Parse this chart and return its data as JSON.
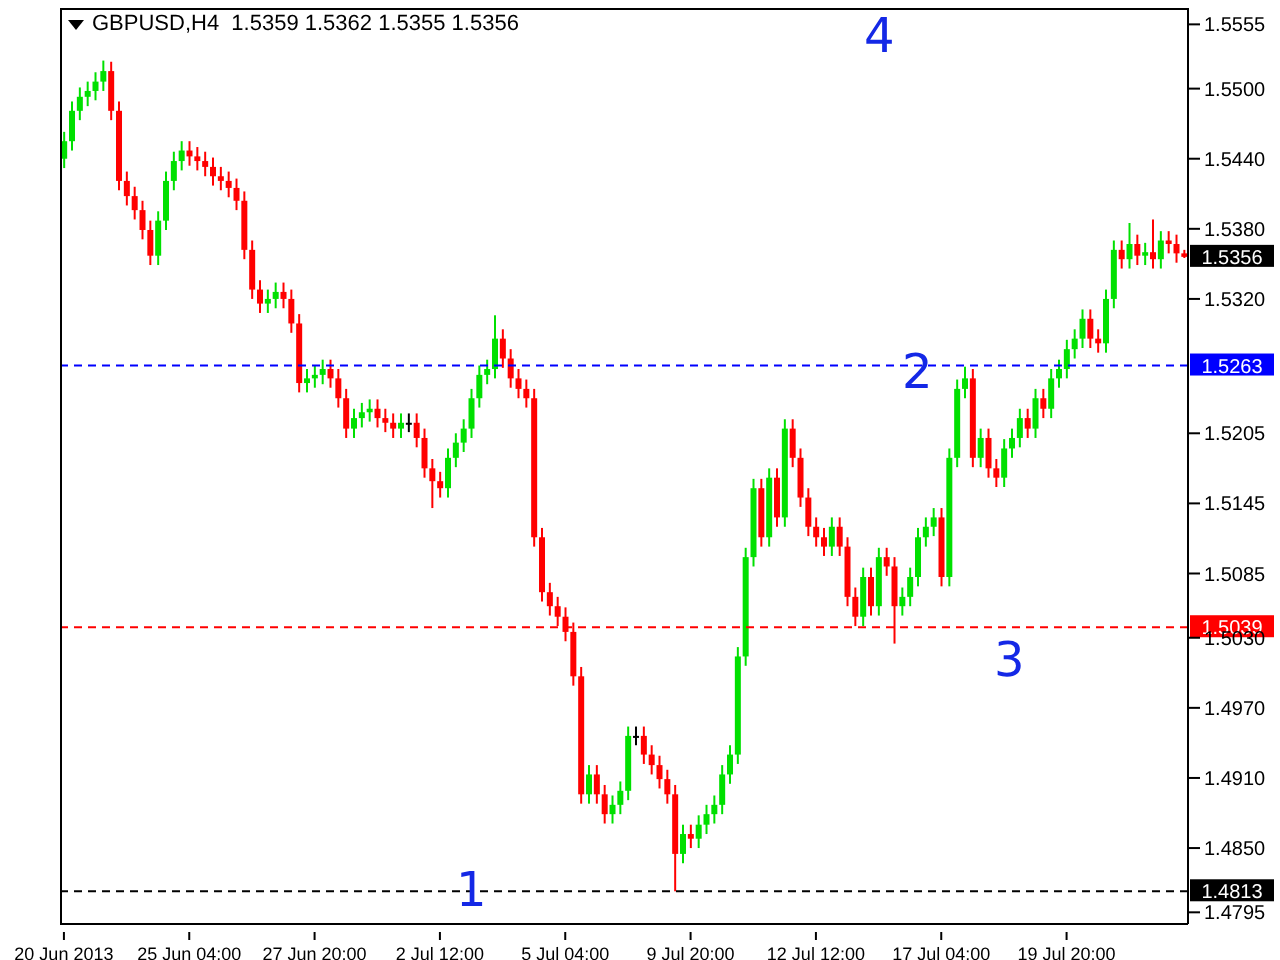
{
  "chart_data": {
    "type": "candlestick",
    "title": "GBPUSD,H4  1.5359 1.5362 1.5355 1.5356",
    "categories": [
      "20 Jun 2013",
      null,
      null,
      null,
      null,
      null,
      null,
      null,
      null,
      null,
      null,
      null,
      null,
      null,
      null,
      null,
      "25 Jun 04:00",
      null,
      null,
      null,
      null,
      null,
      null,
      null,
      null,
      null,
      null,
      null,
      null,
      null,
      null,
      null,
      "27 Jun 20:00",
      null,
      null,
      null,
      null,
      null,
      null,
      null,
      null,
      null,
      null,
      null,
      null,
      null,
      null,
      null,
      "2 Jul 12:00",
      null,
      null,
      null,
      null,
      null,
      null,
      null,
      null,
      null,
      null,
      null,
      null,
      null,
      null,
      null,
      "5 Jul 04:00",
      null,
      null,
      null,
      null,
      null,
      null,
      null,
      null,
      null,
      null,
      null,
      null,
      null,
      null,
      null,
      "9 Jul 20:00",
      null,
      null,
      null,
      null,
      null,
      null,
      null,
      null,
      null,
      null,
      null,
      null,
      null,
      null,
      null,
      "12 Jul 12:00",
      null,
      null,
      null,
      null,
      null,
      null,
      null,
      null,
      null,
      null,
      null,
      null,
      null,
      null,
      null,
      "17 Jul 04:00",
      null,
      null,
      null,
      null,
      null,
      null,
      null,
      null,
      null,
      null,
      null,
      null,
      null,
      null,
      null,
      "19 Jul 20:00",
      null,
      null,
      null,
      null,
      null,
      null,
      null,
      null,
      null,
      null,
      null,
      null,
      null,
      null,
      null
    ],
    "ohlc": [
      [
        1.544,
        1.5463,
        1.5432,
        1.5455
      ],
      [
        1.5455,
        1.5489,
        1.5447,
        1.5481
      ],
      [
        1.5481,
        1.5501,
        1.5473,
        1.5493
      ],
      [
        1.5493,
        1.5506,
        1.5485,
        1.5498
      ],
      [
        1.5498,
        1.5514,
        1.549,
        1.5506
      ],
      [
        1.5506,
        1.5524,
        1.5498,
        1.5515
      ],
      [
        1.5515,
        1.5523,
        1.5473,
        1.5481
      ],
      [
        1.5481,
        1.5489,
        1.5413,
        1.5421
      ],
      [
        1.5421,
        1.5429,
        1.54,
        1.5408
      ],
      [
        1.5408,
        1.5416,
        1.5388,
        1.5396
      ],
      [
        1.5396,
        1.5404,
        1.5371,
        1.5379
      ],
      [
        1.5379,
        1.5387,
        1.5349,
        1.5357
      ],
      [
        1.5357,
        1.5395,
        1.5349,
        1.5387
      ],
      [
        1.5387,
        1.5429,
        1.5379,
        1.5421
      ],
      [
        1.5421,
        1.5446,
        1.5413,
        1.5438
      ],
      [
        1.5438,
        1.5455,
        1.543,
        1.5447
      ],
      [
        1.5447,
        1.5455,
        1.5434,
        1.5442
      ],
      [
        1.5442,
        1.545,
        1.543,
        1.5438
      ],
      [
        1.5438,
        1.5446,
        1.5425,
        1.5433
      ],
      [
        1.5433,
        1.5441,
        1.5417,
        1.5425
      ],
      [
        1.5425,
        1.5433,
        1.5413,
        1.5421
      ],
      [
        1.5421,
        1.5429,
        1.5407,
        1.5415
      ],
      [
        1.5415,
        1.5423,
        1.5396,
        1.5404
      ],
      [
        1.5404,
        1.5412,
        1.5354,
        1.5362
      ],
      [
        1.5362,
        1.537,
        1.532,
        1.5328
      ],
      [
        1.5328,
        1.5336,
        1.5308,
        1.5316
      ],
      [
        1.5316,
        1.5328,
        1.5308,
        1.532
      ],
      [
        1.532,
        1.5334,
        1.5312,
        1.5326
      ],
      [
        1.5326,
        1.5334,
        1.5312,
        1.532
      ],
      [
        1.532,
        1.5328,
        1.5291,
        1.5299
      ],
      [
        1.5299,
        1.5307,
        1.524,
        1.5248
      ],
      [
        1.5248,
        1.526,
        1.524,
        1.5252
      ],
      [
        1.5252,
        1.5263,
        1.5244,
        1.5255
      ],
      [
        1.5255,
        1.5268,
        1.5247,
        1.526
      ],
      [
        1.526,
        1.5268,
        1.5244,
        1.5252
      ],
      [
        1.5252,
        1.526,
        1.5227,
        1.5235
      ],
      [
        1.5235,
        1.5243,
        1.5201,
        1.5209
      ],
      [
        1.5209,
        1.5226,
        1.5201,
        1.5218
      ],
      [
        1.5218,
        1.5231,
        1.521,
        1.5223
      ],
      [
        1.5223,
        1.5234,
        1.5215,
        1.5226
      ],
      [
        1.5226,
        1.5234,
        1.521,
        1.5218
      ],
      [
        1.5218,
        1.5226,
        1.5206,
        1.5214
      ],
      [
        1.5214,
        1.5222,
        1.5201,
        1.5209
      ],
      [
        1.5209,
        1.5222,
        1.5201,
        1.5214
      ],
      [
        1.5214,
        1.5222,
        1.5206,
        1.5214
      ],
      [
        1.5214,
        1.5222,
        1.5193,
        1.5201
      ],
      [
        1.5201,
        1.5209,
        1.5167,
        1.5175
      ],
      [
        1.5175,
        1.5183,
        1.5141,
        1.5164
      ],
      [
        1.5164,
        1.5172,
        1.515,
        1.5158
      ],
      [
        1.5158,
        1.5192,
        1.515,
        1.5184
      ],
      [
        1.5184,
        1.5205,
        1.5176,
        1.5197
      ],
      [
        1.5197,
        1.5217,
        1.5189,
        1.5209
      ],
      [
        1.5209,
        1.5243,
        1.5201,
        1.5235
      ],
      [
        1.5235,
        1.5263,
        1.5227,
        1.5255
      ],
      [
        1.5255,
        1.5268,
        1.5247,
        1.526
      ],
      [
        1.526,
        1.5306,
        1.5252,
        1.5286
      ],
      [
        1.5286,
        1.5294,
        1.5261,
        1.5269
      ],
      [
        1.5269,
        1.5277,
        1.5244,
        1.5252
      ],
      [
        1.5252,
        1.526,
        1.5235,
        1.5243
      ],
      [
        1.5243,
        1.5251,
        1.5227,
        1.5235
      ],
      [
        1.5235,
        1.5243,
        1.5108,
        1.5116
      ],
      [
        1.5116,
        1.5124,
        1.5061,
        1.5069
      ],
      [
        1.5069,
        1.5077,
        1.5049,
        1.5057
      ],
      [
        1.5057,
        1.5065,
        1.504,
        1.5048
      ],
      [
        1.5048,
        1.5056,
        1.5027,
        1.5035
      ],
      [
        1.5035,
        1.5043,
        1.4989,
        1.4997
      ],
      [
        1.4997,
        1.5005,
        1.4888,
        1.4896
      ],
      [
        1.4896,
        1.4921,
        1.4888,
        1.4913
      ],
      [
        1.4913,
        1.4921,
        1.4888,
        1.4896
      ],
      [
        1.4896,
        1.4904,
        1.4871,
        1.4879
      ],
      [
        1.4879,
        1.4895,
        1.4871,
        1.4887
      ],
      [
        1.4887,
        1.4907,
        1.4879,
        1.4899
      ],
      [
        1.4899,
        1.4954,
        1.4891,
        1.4946
      ],
      [
        1.4946,
        1.4954,
        1.4938,
        1.4946
      ],
      [
        1.4946,
        1.4954,
        1.4922,
        1.493
      ],
      [
        1.493,
        1.4938,
        1.4913,
        1.4921
      ],
      [
        1.4921,
        1.4929,
        1.4901,
        1.4909
      ],
      [
        1.4909,
        1.4917,
        1.4888,
        1.4896
      ],
      [
        1.4896,
        1.4904,
        1.4813,
        1.4845
      ],
      [
        1.4845,
        1.487,
        1.4837,
        1.4862
      ],
      [
        1.4862,
        1.487,
        1.485,
        1.4858
      ],
      [
        1.4858,
        1.4878,
        1.485,
        1.487
      ],
      [
        1.487,
        1.4887,
        1.4862,
        1.4879
      ],
      [
        1.4879,
        1.4895,
        1.4871,
        1.4887
      ],
      [
        1.4887,
        1.4921,
        1.4879,
        1.4913
      ],
      [
        1.4913,
        1.4938,
        1.4905,
        1.493
      ],
      [
        1.493,
        1.5022,
        1.4922,
        1.5014
      ],
      [
        1.5014,
        1.5107,
        1.5006,
        1.5099
      ],
      [
        1.5099,
        1.5166,
        1.5091,
        1.5158
      ],
      [
        1.5158,
        1.5166,
        1.5108,
        1.5116
      ],
      [
        1.5116,
        1.5175,
        1.5108,
        1.5167
      ],
      [
        1.5167,
        1.5175,
        1.5125,
        1.5133
      ],
      [
        1.5133,
        1.5217,
        1.5125,
        1.5209
      ],
      [
        1.5209,
        1.5217,
        1.5176,
        1.5184
      ],
      [
        1.5184,
        1.5192,
        1.5142,
        1.515
      ],
      [
        1.515,
        1.5158,
        1.5117,
        1.5125
      ],
      [
        1.5125,
        1.5133,
        1.5108,
        1.5116
      ],
      [
        1.5116,
        1.5124,
        1.51,
        1.5108
      ],
      [
        1.5108,
        1.5133,
        1.51,
        1.5125
      ],
      [
        1.5125,
        1.5133,
        1.51,
        1.5108
      ],
      [
        1.5108,
        1.5116,
        1.5057,
        1.5065
      ],
      [
        1.5065,
        1.5073,
        1.504,
        1.5048
      ],
      [
        1.5048,
        1.509,
        1.504,
        1.5082
      ],
      [
        1.5082,
        1.509,
        1.5049,
        1.5057
      ],
      [
        1.5057,
        1.5107,
        1.5049,
        1.5099
      ],
      [
        1.5099,
        1.5107,
        1.5083,
        1.5091
      ],
      [
        1.5091,
        1.5099,
        1.5025,
        1.5057
      ],
      [
        1.5057,
        1.5073,
        1.5049,
        1.5065
      ],
      [
        1.5065,
        1.509,
        1.5057,
        1.5082
      ],
      [
        1.5082,
        1.5124,
        1.5074,
        1.5116
      ],
      [
        1.5116,
        1.5133,
        1.5108,
        1.5125
      ],
      [
        1.5125,
        1.5141,
        1.5117,
        1.5133
      ],
      [
        1.5133,
        1.5141,
        1.5074,
        1.5082
      ],
      [
        1.5082,
        1.5192,
        1.5074,
        1.5184
      ],
      [
        1.5184,
        1.5251,
        1.5176,
        1.5243
      ],
      [
        1.5243,
        1.5262,
        1.5235,
        1.5252
      ],
      [
        1.5252,
        1.526,
        1.5176,
        1.5184
      ],
      [
        1.5184,
        1.5209,
        1.5176,
        1.5201
      ],
      [
        1.5201,
        1.5209,
        1.5167,
        1.5175
      ],
      [
        1.5175,
        1.5183,
        1.5159,
        1.5167
      ],
      [
        1.5167,
        1.52,
        1.5159,
        1.5192
      ],
      [
        1.5192,
        1.5209,
        1.5184,
        1.5201
      ],
      [
        1.5201,
        1.5226,
        1.5193,
        1.5218
      ],
      [
        1.5218,
        1.5226,
        1.5201,
        1.5209
      ],
      [
        1.5209,
        1.5243,
        1.5201,
        1.5235
      ],
      [
        1.5235,
        1.5243,
        1.5218,
        1.5226
      ],
      [
        1.5226,
        1.526,
        1.5218,
        1.5252
      ],
      [
        1.5252,
        1.5268,
        1.5244,
        1.526
      ],
      [
        1.526,
        1.5285,
        1.5252,
        1.5277
      ],
      [
        1.5277,
        1.5294,
        1.5269,
        1.5286
      ],
      [
        1.5286,
        1.5311,
        1.5278,
        1.5303
      ],
      [
        1.5303,
        1.5311,
        1.5278,
        1.5286
      ],
      [
        1.5286,
        1.5294,
        1.5274,
        1.5282
      ],
      [
        1.5282,
        1.5328,
        1.5274,
        1.532
      ],
      [
        1.532,
        1.537,
        1.5312,
        1.5362
      ],
      [
        1.5362,
        1.537,
        1.5346,
        1.5354
      ],
      [
        1.5354,
        1.5385,
        1.5346,
        1.5367
      ],
      [
        1.5367,
        1.5375,
        1.5349,
        1.5357
      ],
      [
        1.5357,
        1.5368,
        1.5349,
        1.536
      ],
      [
        1.536,
        1.5388,
        1.5346,
        1.5354
      ],
      [
        1.5354,
        1.5378,
        1.5346,
        1.537
      ],
      [
        1.537,
        1.5378,
        1.5359,
        1.5367
      ],
      [
        1.5367,
        1.5375,
        1.5351,
        1.5359
      ],
      [
        1.5359,
        1.5362,
        1.5355,
        1.5356
      ]
    ],
    "ylim": [
      1.4785,
      1.5569
    ],
    "yticks": [
      1.5555,
      {
        "value": 1.55,
        "label": "1.5500"
      },
      {
        "value": 1.544,
        "label": "1.5440"
      },
      {
        "value": 1.538,
        "label": "1.5380"
      },
      {
        "value": 1.532,
        "label": "1.5320"
      },
      1.5205,
      1.5145,
      1.5085,
      {
        "value": 1.503,
        "label": "1.5030"
      },
      {
        "value": 1.497,
        "label": "1.4970"
      },
      {
        "value": 1.491,
        "label": "1.4910"
      },
      {
        "value": 1.485,
        "label": "1.4850"
      },
      1.4795
    ],
    "ref_lines": [
      {
        "axis": "y",
        "value": 1.5263,
        "label": "1.5263",
        "color": "#0000ff",
        "line_style": "dashed"
      },
      {
        "axis": "y",
        "value": 1.5039,
        "label": "1.5039",
        "color": "#ff0000",
        "line_style": "dashed"
      },
      {
        "axis": "y",
        "value": 1.4813,
        "label": "1.4813",
        "color": "#000000",
        "line_style": "dashed"
      }
    ],
    "annotations": [
      "1",
      "2",
      "3",
      "4",
      "1.5356"
    ]
  }
}
